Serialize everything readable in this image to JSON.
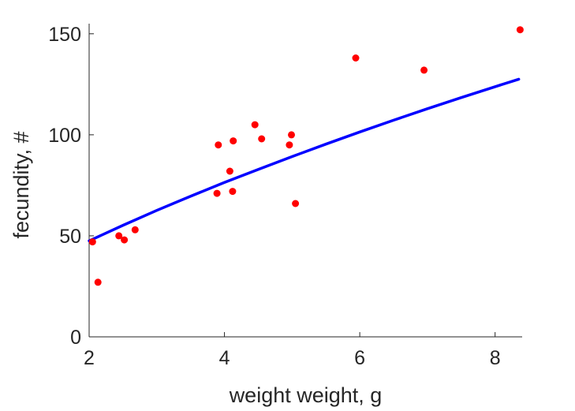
{
  "chart_data": {
    "type": "scatter",
    "xlabel": "weight weight, g",
    "ylabel": "fecundity, #",
    "xlim": [
      2,
      8.4
    ],
    "ylim": [
      0,
      155
    ],
    "xticks": [
      2,
      4,
      6,
      8
    ],
    "yticks": [
      0,
      50,
      100,
      150
    ],
    "grid": false,
    "colors": {
      "points": "#ff0000",
      "fit": "#0000ff",
      "axis": "#262626"
    },
    "series": [
      {
        "kind": "points",
        "x": [
          2.05,
          2.13,
          2.44,
          2.52,
          2.68,
          3.89,
          3.91,
          4.08,
          4.12,
          4.13,
          4.45,
          4.55,
          4.96,
          4.99,
          5.05,
          5.94,
          6.95,
          8.37
        ],
        "y": [
          47,
          27,
          50,
          48,
          53,
          71,
          95,
          82,
          72,
          97,
          105,
          98,
          95,
          100,
          66,
          138,
          132,
          152
        ]
      },
      {
        "kind": "fit-line",
        "x": [
          2.0,
          2.5,
          3.0,
          3.5,
          4.0,
          4.5,
          5.0,
          5.5,
          6.0,
          6.5,
          7.0,
          7.5,
          8.0,
          8.35
        ],
        "y": [
          47.5,
          55.2,
          62.6,
          69.6,
          76.4,
          82.9,
          89.2,
          95.4,
          101.4,
          107.2,
          112.9,
          118.4,
          123.8,
          127.5
        ]
      }
    ]
  }
}
